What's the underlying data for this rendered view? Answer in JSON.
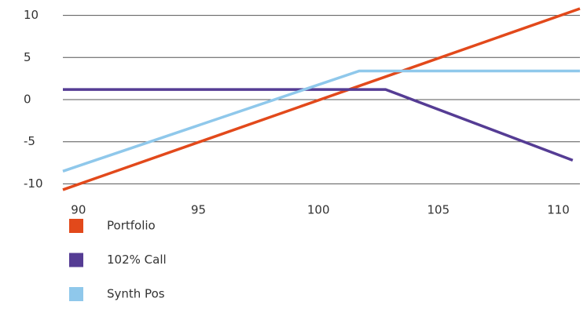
{
  "chart_data": {
    "type": "line",
    "xlim": [
      89.35,
      110.9
    ],
    "xticks": [
      90,
      95,
      100,
      105,
      110
    ],
    "ylim": [
      -10.8,
      10.8
    ],
    "yticks": [
      10,
      5,
      0,
      -5,
      -10
    ],
    "grid": true,
    "series": [
      {
        "name": "Portfolio",
        "color": "#e2491b",
        "x": [
          89.35,
          110.9
        ],
        "values": [
          -10.7,
          10.8
        ]
      },
      {
        "name": "102% Call",
        "color": "#553c94",
        "x": [
          89.35,
          102.8,
          110.6
        ],
        "values": [
          1.2,
          1.2,
          -7.2
        ]
      },
      {
        "name": "Synth Pos",
        "color": "#8fc8eb",
        "x": [
          89.35,
          101.7,
          110.9
        ],
        "values": [
          -8.5,
          3.4,
          3.4
        ]
      }
    ]
  }
}
